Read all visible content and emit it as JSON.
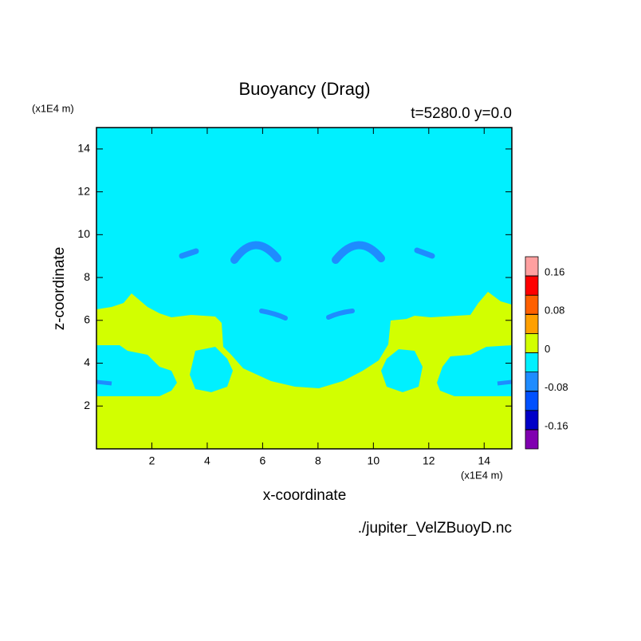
{
  "chart_data": {
    "type": "contour",
    "title": "Buoyancy (Drag)",
    "subtitle": "t=5280.0 y=0.0",
    "x_label": "x-coordinate",
    "y_label": "z-coordinate",
    "x_unit": "(x1E4 m)",
    "y_unit": "(x1E4 m)",
    "source": "./jupiter_VelZBuoyD.nc",
    "xlim": [
      0,
      15
    ],
    "xticks": [
      2,
      4,
      6,
      8,
      10,
      12,
      14
    ],
    "ylim": [
      0,
      15
    ],
    "yticks": [
      2,
      4,
      6,
      8,
      10,
      12,
      14
    ],
    "clim": [
      -0.2,
      0.2
    ],
    "cticks": [
      -0.16,
      -0.08,
      0,
      0.08,
      0.16
    ],
    "colors": [
      "#8000b0",
      "#0000c8",
      "#0050ff",
      "#1e8cff",
      "#00f0ff",
      "#d2ff00",
      "#ffa000",
      "#ff6000",
      "#ff0000",
      "#ffa0a0"
    ]
  }
}
